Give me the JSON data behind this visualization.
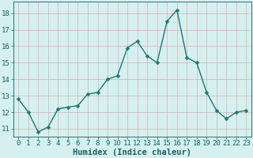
{
  "x": [
    0,
    1,
    2,
    3,
    4,
    5,
    6,
    7,
    8,
    9,
    10,
    11,
    12,
    13,
    14,
    15,
    16,
    17,
    18,
    19,
    20,
    21,
    22,
    23
  ],
  "y": [
    12.8,
    12.0,
    10.8,
    11.1,
    12.2,
    12.3,
    12.4,
    13.1,
    13.2,
    14.0,
    14.2,
    15.9,
    16.3,
    15.4,
    15.0,
    17.5,
    18.2,
    15.3,
    15.0,
    13.2,
    12.1,
    11.6,
    12.0,
    12.1
  ],
  "line_color": "#1a7a6e",
  "marker_color": "#1a7a6e",
  "bg_color": "#d6f0f0",
  "grid_color": "#d4b0b0",
  "xlabel": "Humidex (Indice chaleur)",
  "ylim": [
    10.5,
    18.7
  ],
  "xlim": [
    -0.5,
    23.5
  ],
  "yticks": [
    11,
    12,
    13,
    14,
    15,
    16,
    17,
    18
  ],
  "xticks": [
    0,
    1,
    2,
    3,
    4,
    5,
    6,
    7,
    8,
    9,
    10,
    11,
    12,
    13,
    14,
    15,
    16,
    17,
    18,
    19,
    20,
    21,
    22,
    23
  ],
  "xlabel_fontsize": 7.5,
  "tick_fontsize": 6.5,
  "linewidth": 1.0,
  "markersize": 2.5
}
